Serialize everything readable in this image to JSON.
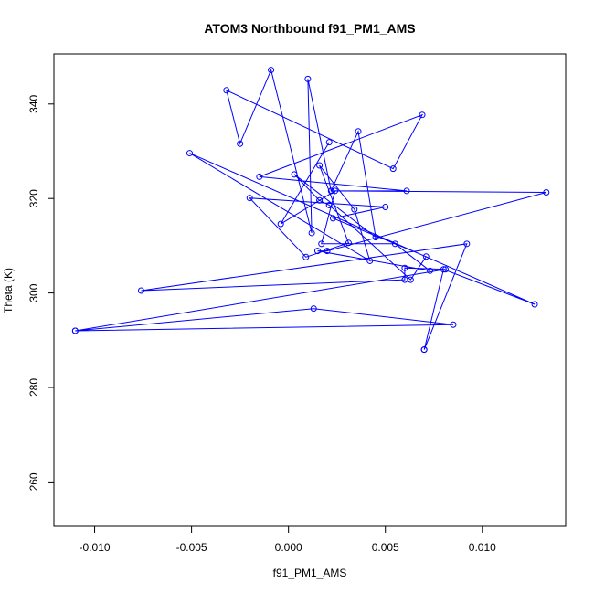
{
  "chart_data": {
    "type": "line",
    "title": "ATOM3 Northbound f91_PM1_AMS",
    "xlabel": "f91_PM1_AMS",
    "ylabel": "Theta (K)",
    "xlim": [
      -0.0121,
      0.0143
    ],
    "ylim": [
      250.6,
      350.6
    ],
    "x_ticks": [
      {
        "value": -0.01,
        "label": "-0.010"
      },
      {
        "value": -0.005,
        "label": "-0.005"
      },
      {
        "value": 0.0,
        "label": "0.000"
      },
      {
        "value": 0.005,
        "label": "0.005"
      },
      {
        "value": 0.01,
        "label": "0.010"
      }
    ],
    "y_ticks": [
      {
        "value": 260,
        "label": "260"
      },
      {
        "value": 280,
        "label": "280"
      },
      {
        "value": 300,
        "label": "300"
      },
      {
        "value": 320,
        "label": "320"
      },
      {
        "value": 340,
        "label": "340"
      }
    ],
    "grid": false,
    "color": "#0000ff",
    "series": [
      {
        "marker": "open-circle",
        "x": [
          -0.011,
          0.0013,
          0.0085,
          -0.011,
          0.0081,
          0.006,
          0.006,
          -0.0076,
          0.0092,
          0.007,
          0.007,
          0.008,
          0.0127,
          -0.0051,
          0.0042,
          0.0034,
          0.0016,
          0.0031,
          0.0009,
          -0.002,
          0.005,
          0.0023,
          0.0071,
          0.0063,
          0.0021,
          0.0016,
          0.0003,
          0.0045,
          0.0036,
          0.0022,
          0.001,
          0.0012,
          -0.0009,
          -0.0025,
          -0.0032,
          0.0054,
          0.0069,
          -0.0015,
          0.0061,
          0.0022,
          0.0133,
          0.002,
          0.0015,
          0.0073,
          0.0055,
          0.0017,
          0.0024,
          -0.0004,
          0.0021
        ],
        "y": [
          292.0,
          296.7,
          293.3,
          292.0,
          305.0,
          305.3,
          302.8,
          300.5,
          310.4,
          288.0,
          288.0,
          305.0,
          297.6,
          329.6,
          306.8,
          317.7,
          327.0,
          310.6,
          307.6,
          320.1,
          318.2,
          315.8,
          307.7,
          302.8,
          318.6,
          319.6,
          325.1,
          311.8,
          334.2,
          321.6,
          345.3,
          312.7,
          347.2,
          331.6,
          342.9,
          326.3,
          337.7,
          324.6,
          321.6,
          321.6,
          321.3,
          308.9,
          308.9,
          304.7,
          310.4,
          310.4,
          321.6,
          314.6,
          331.9
        ]
      }
    ]
  }
}
